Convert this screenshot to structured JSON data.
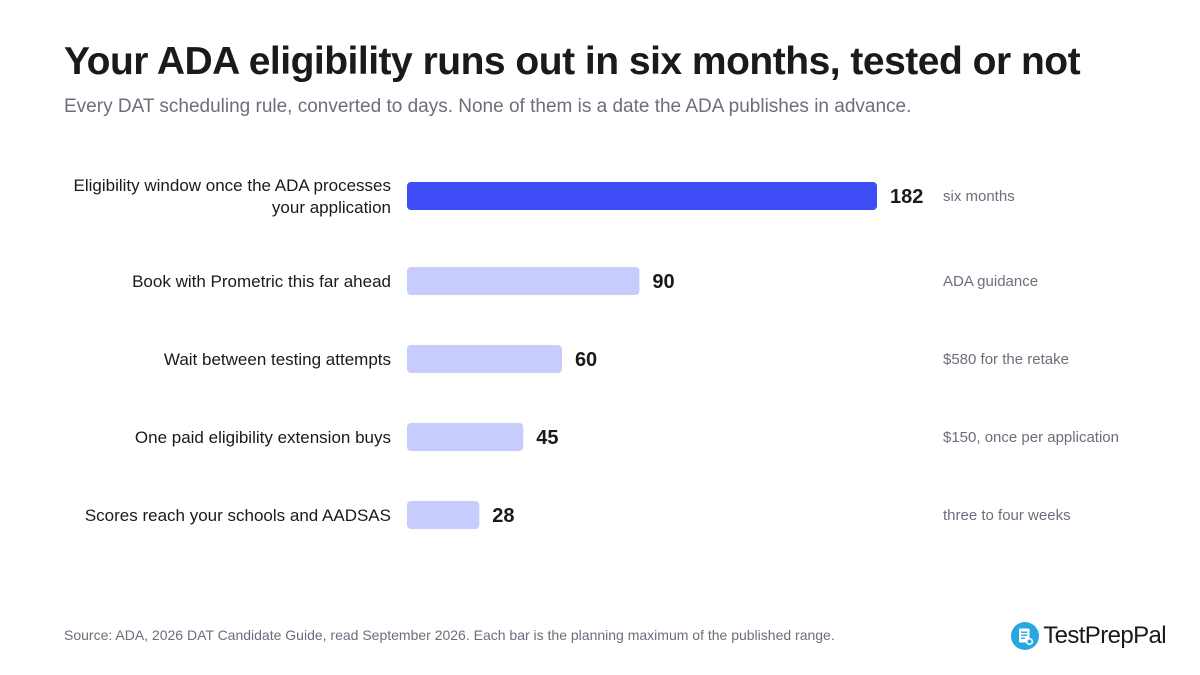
{
  "header": {
    "title": "Your ADA eligibility runs out in six months, tested or not",
    "subtitle": "Every DAT scheduling rule, converted to days. None of them is a date the ADA publishes in advance."
  },
  "chart_data": {
    "type": "bar",
    "orientation": "horizontal",
    "title": "Your ADA eligibility runs out in six months, tested or not",
    "subtitle": "Every DAT scheduling rule, converted to days. None of them is a date the ADA publishes in advance.",
    "xlabel": "",
    "ylabel": "",
    "xlim": [
      0,
      182
    ],
    "grid": false,
    "categories": [
      "Eligibility window once the ADA processes your application",
      "Book with Prometric this far ahead",
      "Wait between testing attempts",
      "One paid eligibility extension buys",
      "Scores reach your schools and AADSAS"
    ],
    "category_lines": [
      [
        "Eligibility window once the ADA processes",
        "your application"
      ],
      [
        "Book with Prometric this far ahead"
      ],
      [
        "Wait between testing attempts"
      ],
      [
        "One paid eligibility extension buys"
      ],
      [
        "Scores reach your schools and AADSAS"
      ]
    ],
    "values": [
      182,
      90,
      60,
      45,
      28
    ],
    "annotations": [
      "six months",
      "ADA guidance",
      "$580 for the retake",
      "$150, once per application",
      "three to four weeks"
    ],
    "highlight_index": 0,
    "colors": {
      "highlight": "#3d4cf5",
      "default": "#c8ccfc"
    }
  },
  "footer": {
    "source": "Source: ADA, 2026 DAT Candidate Guide, read September 2026. Each bar is the planning maximum of the published range.",
    "brand": "TestPrepPal",
    "brand_icon": "document-badge-icon",
    "brand_color": "#29a8e0"
  }
}
